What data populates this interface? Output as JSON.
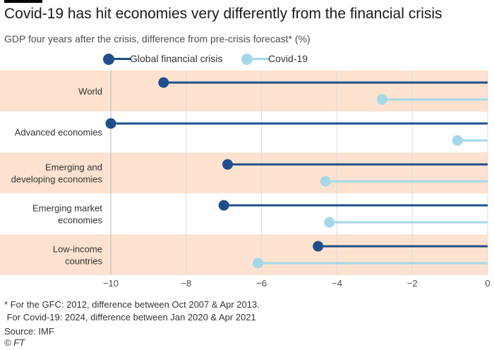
{
  "title": "Covid-19 has hit economies very differently from the financial crisis",
  "subtitle": "GDP four years after the crisis, difference from pre-crisis forecast* (%)",
  "legend": [
    {
      "label": "Global financial crisis",
      "color": "#1f4e8c"
    },
    {
      "label": "Covid-19",
      "color": "#a3d8e8"
    }
  ],
  "chart_data": {
    "type": "dot",
    "categories": [
      [
        "World"
      ],
      [
        "Advanced economies"
      ],
      [
        "Emerging and",
        "developing economies"
      ],
      [
        "Emerging market",
        "economies"
      ],
      [
        "Low-income",
        "countries"
      ]
    ],
    "series": [
      {
        "name": "Global financial crisis",
        "color": "#1f4e8c",
        "values": [
          -8.6,
          -10.0,
          -6.9,
          -7.0,
          -4.5
        ]
      },
      {
        "name": "Covid-19",
        "color": "#a3d8e8",
        "values": [
          -2.8,
          -0.8,
          -4.3,
          -4.2,
          -6.1
        ]
      }
    ],
    "xlim": [
      -10,
      0
    ],
    "xticks": [
      "-10",
      "-8",
      "-6",
      "-4",
      "-2",
      "0"
    ],
    "band_color": "#fde3cf",
    "grid": true,
    "legend_position": "top"
  },
  "footnotes": [
    "* For the GFC: 2012, difference between Oct 2007 & Apr 2013.",
    " For Covid-19: 2024, difference between Jan 2020 & Apr 2021"
  ],
  "source": "Source: IMF",
  "credit": "© FT"
}
